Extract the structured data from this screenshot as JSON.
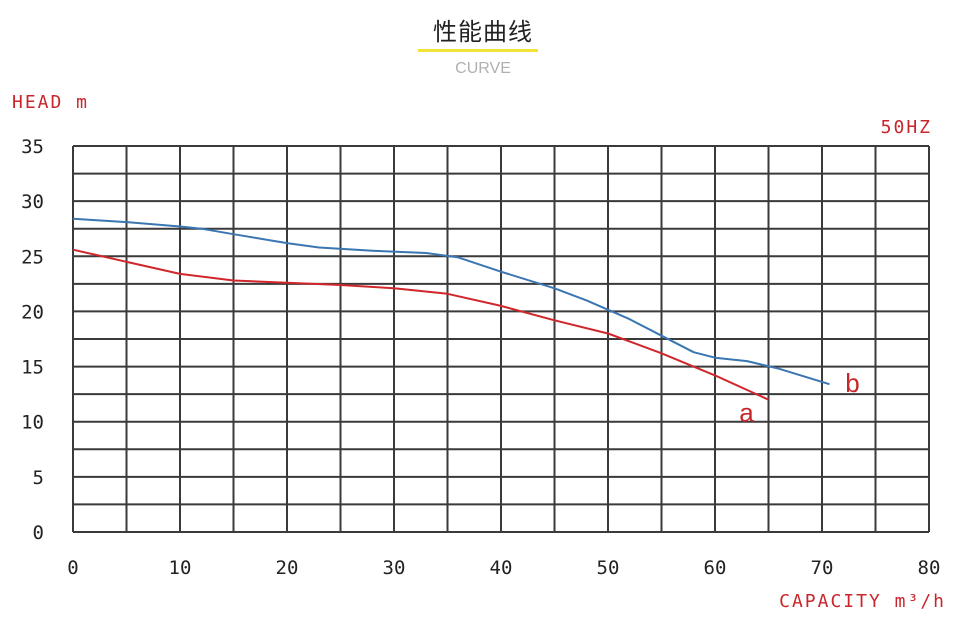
{
  "header": {
    "title": "性能曲线",
    "subtitle": "CURVE"
  },
  "chart_data": {
    "type": "line",
    "ylabel": "HEAD m",
    "xlabel": "CAPACITY m³/h",
    "annotation": "50HZ",
    "xlim": [
      0,
      80
    ],
    "ylim": [
      0,
      35
    ],
    "x_ticks": [
      "0",
      "10",
      "20",
      "30",
      "40",
      "50",
      "60",
      "70",
      "80"
    ],
    "y_ticks": [
      "0",
      "5",
      "10",
      "15",
      "20",
      "25",
      "30",
      "35"
    ],
    "grid": true,
    "colors": {
      "grid": "#3a3a3a",
      "labels": "#c8262b"
    },
    "series": [
      {
        "name": "a",
        "color": "#d0272c",
        "points": [
          [
            0,
            25.6
          ],
          [
            5,
            24.5
          ],
          [
            10,
            23.4
          ],
          [
            15,
            22.8
          ],
          [
            20,
            22.6
          ],
          [
            25,
            22.4
          ],
          [
            30,
            22.1
          ],
          [
            35,
            21.6
          ],
          [
            40,
            20.5
          ],
          [
            45,
            19.2
          ],
          [
            50,
            18.0
          ],
          [
            55,
            16.2
          ],
          [
            60,
            14.2
          ],
          [
            65,
            12.0
          ]
        ]
      },
      {
        "name": "b",
        "color": "#3a76b1",
        "points": [
          [
            0,
            28.4
          ],
          [
            5,
            28.1
          ],
          [
            10,
            27.7
          ],
          [
            12,
            27.5
          ],
          [
            15,
            27.0
          ],
          [
            20,
            26.2
          ],
          [
            23,
            25.8
          ],
          [
            28,
            25.5
          ],
          [
            33,
            25.3
          ],
          [
            36,
            24.9
          ],
          [
            40,
            23.6
          ],
          [
            45,
            22.1
          ],
          [
            48,
            21.0
          ],
          [
            52,
            19.3
          ],
          [
            55,
            17.8
          ],
          [
            58,
            16.3
          ],
          [
            60,
            15.8
          ],
          [
            63,
            15.5
          ],
          [
            66,
            14.8
          ],
          [
            70.7,
            13.4
          ]
        ]
      }
    ]
  }
}
